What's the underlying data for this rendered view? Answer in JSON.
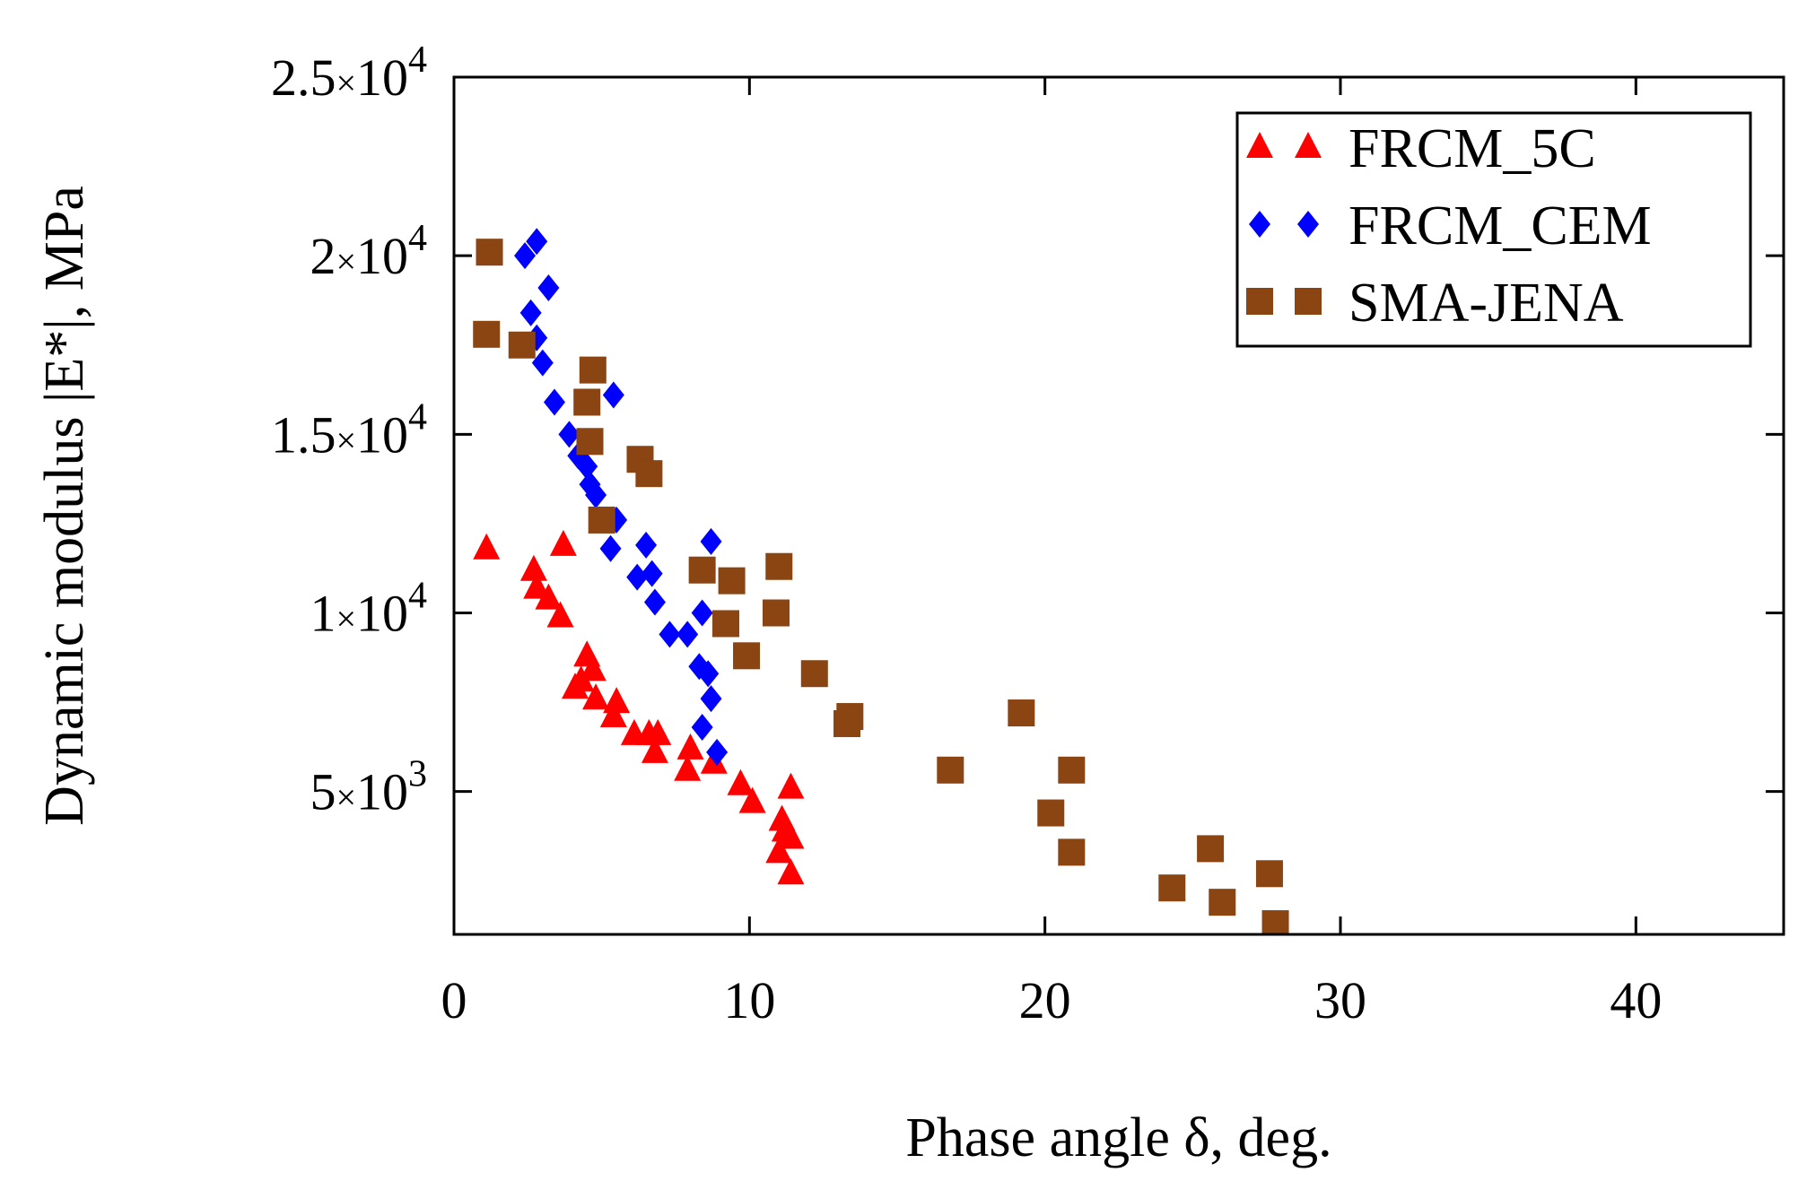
{
  "chart_data": {
    "type": "scatter",
    "title": "",
    "xlabel": "Phase angle δ, deg.",
    "ylabel": "Dynamic modulus |E*|, MPa",
    "xlim": [
      0,
      45
    ],
    "ylim": [
      1000,
      25000
    ],
    "xticks": [
      {
        "value": 0,
        "label": "0"
      },
      {
        "value": 10,
        "label": "10"
      },
      {
        "value": 20,
        "label": "20"
      },
      {
        "value": 30,
        "label": "30"
      },
      {
        "value": 40,
        "label": "40"
      }
    ],
    "yticks": [
      {
        "value": 5000,
        "mantissa": "5",
        "times": "×",
        "base": "10",
        "exp": "3"
      },
      {
        "value": 10000,
        "mantissa": "1",
        "times": "×",
        "base": "10",
        "exp": "4"
      },
      {
        "value": 15000,
        "mantissa": "1.5",
        "times": "×",
        "base": "10",
        "exp": "4"
      },
      {
        "value": 20000,
        "mantissa": "2",
        "times": "×",
        "base": "10",
        "exp": "4"
      },
      {
        "value": 25000,
        "mantissa": "2.5",
        "times": "×",
        "base": "10",
        "exp": "4"
      }
    ],
    "grid": false,
    "legend_position": "top-right",
    "series": [
      {
        "name": "FRCM_5C",
        "marker": "triangle",
        "color": "#ff0000",
        "points": [
          [
            1.1,
            11800
          ],
          [
            3.7,
            11900
          ],
          [
            2.7,
            11200
          ],
          [
            2.8,
            10700
          ],
          [
            3.2,
            10400
          ],
          [
            3.6,
            9900
          ],
          [
            4.5,
            8800
          ],
          [
            4.7,
            8400
          ],
          [
            4.3,
            8100
          ],
          [
            4.1,
            7900
          ],
          [
            4.8,
            7600
          ],
          [
            5.5,
            7500
          ],
          [
            5.4,
            7100
          ],
          [
            6.1,
            6600
          ],
          [
            6.6,
            6600
          ],
          [
            6.9,
            6600
          ],
          [
            6.8,
            6100
          ],
          [
            8.0,
            6200
          ],
          [
            7.9,
            5600
          ],
          [
            8.8,
            5800
          ],
          [
            9.7,
            5200
          ],
          [
            10.1,
            4700
          ],
          [
            11.4,
            5100
          ],
          [
            11.1,
            4200
          ],
          [
            11.2,
            3900
          ],
          [
            11.4,
            3700
          ],
          [
            11.0,
            3300
          ],
          [
            11.4,
            2700
          ]
        ]
      },
      {
        "name": "FRCM_CEM",
        "marker": "diamond",
        "color": "#0000ff",
        "points": [
          [
            2.8,
            20400
          ],
          [
            2.4,
            20000
          ],
          [
            3.2,
            19100
          ],
          [
            2.6,
            18400
          ],
          [
            2.8,
            17700
          ],
          [
            3.0,
            17000
          ],
          [
            3.4,
            15900
          ],
          [
            5.4,
            16100
          ],
          [
            3.9,
            15000
          ],
          [
            4.2,
            14400
          ],
          [
            4.5,
            14100
          ],
          [
            4.6,
            13600
          ],
          [
            4.8,
            13300
          ],
          [
            5.5,
            12600
          ],
          [
            5.3,
            11800
          ],
          [
            6.5,
            11900
          ],
          [
            8.7,
            12000
          ],
          [
            6.2,
            11000
          ],
          [
            6.7,
            11100
          ],
          [
            6.8,
            10300
          ],
          [
            8.4,
            10000
          ],
          [
            7.3,
            9400
          ],
          [
            7.9,
            9400
          ],
          [
            8.3,
            8500
          ],
          [
            8.6,
            8300
          ],
          [
            8.7,
            7600
          ],
          [
            8.4,
            6800
          ],
          [
            8.9,
            6100
          ]
        ]
      },
      {
        "name": "SMA-JENA",
        "marker": "square",
        "color": "#8b4513",
        "points": [
          [
            1.2,
            20100
          ],
          [
            1.1,
            17800
          ],
          [
            2.3,
            17500
          ],
          [
            4.7,
            16800
          ],
          [
            4.5,
            15900
          ],
          [
            4.6,
            14800
          ],
          [
            6.3,
            14300
          ],
          [
            6.6,
            13900
          ],
          [
            5.0,
            12600
          ],
          [
            8.4,
            11200
          ],
          [
            9.4,
            10900
          ],
          [
            11.0,
            11300
          ],
          [
            10.9,
            10000
          ],
          [
            9.2,
            9700
          ],
          [
            9.9,
            8800
          ],
          [
            12.2,
            8300
          ],
          [
            13.4,
            7100
          ],
          [
            13.3,
            6900
          ],
          [
            16.8,
            5600
          ],
          [
            19.2,
            7200
          ],
          [
            20.9,
            5600
          ],
          [
            20.2,
            4400
          ],
          [
            20.9,
            3300
          ],
          [
            24.3,
            2300
          ],
          [
            25.6,
            3400
          ],
          [
            26.0,
            1900
          ],
          [
            27.6,
            2700
          ],
          [
            27.8,
            1300
          ]
        ]
      }
    ]
  }
}
